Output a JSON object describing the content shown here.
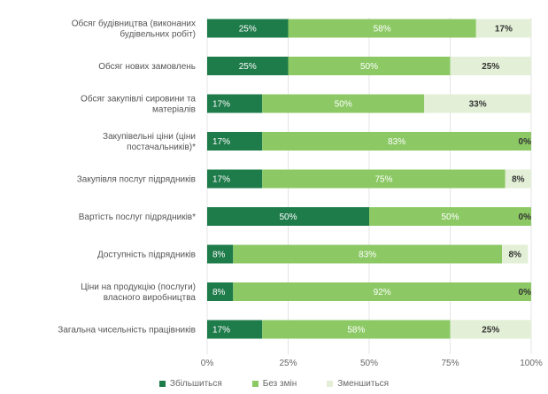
{
  "chart_data": {
    "type": "bar",
    "orientation": "horizontal",
    "stacked": true,
    "categories": [
      [
        "Обсяг будівництва (виконаних",
        "будівельних робіт)"
      ],
      [
        "Обсяг нових замовлень"
      ],
      [
        "Обсяг закупівлі сировини та",
        "матеріалів"
      ],
      [
        "Закупівельні ціни (ціни",
        "постачальників)*"
      ],
      [
        "Закупівля послуг підрядників"
      ],
      [
        "Вартість послуг підрядників*"
      ],
      [
        "Доступність підрядників"
      ],
      [
        "Ціни на продукцію (послуги)",
        "власного виробництва"
      ],
      [
        "Загальна чисельність працівників"
      ]
    ],
    "series": [
      {
        "name": "Збільшиться",
        "color": "#1e7b4a",
        "values": [
          25,
          25,
          17,
          17,
          17,
          50,
          8,
          8,
          17
        ],
        "labels": [
          "25%",
          "25%",
          "17%",
          "17%",
          "17%",
          "50%",
          "8%",
          "8%",
          "17%"
        ]
      },
      {
        "name": "Без змін",
        "color": "#8cc965",
        "values": [
          58,
          50,
          50,
          83,
          75,
          50,
          83,
          92,
          58
        ],
        "labels": [
          "58%",
          "50%",
          "50%",
          "83%",
          "75%",
          "50%",
          "83%",
          "92%",
          "58%"
        ]
      },
      {
        "name": "Зменшиться",
        "color": "#e3efd6",
        "values": [
          17,
          25,
          33,
          0,
          8,
          0,
          8,
          0,
          25
        ],
        "labels": [
          "17%",
          "25%",
          "33%",
          "0%",
          "8%",
          "0%",
          "8%",
          "0%",
          "25%"
        ]
      }
    ],
    "xlim": [
      0,
      100
    ],
    "xticks": [
      "0%",
      "25%",
      "50%",
      "75%",
      "100%"
    ],
    "grid": true,
    "legend_position": "bottom"
  }
}
